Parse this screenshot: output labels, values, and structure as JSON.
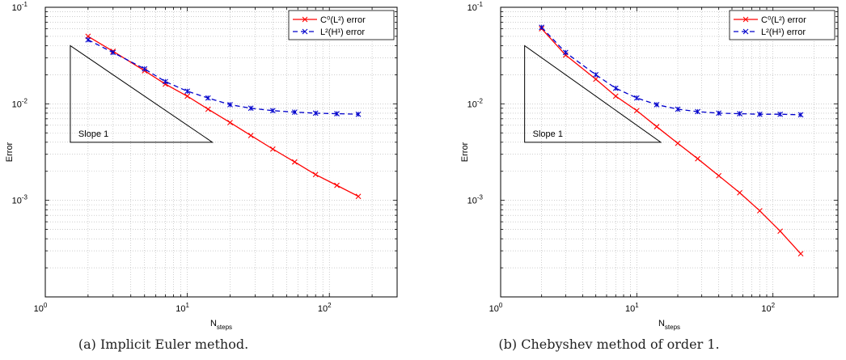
{
  "chart_data": [
    {
      "type": "line",
      "caption": "(a) Implicit Euler method.",
      "xlabel": "N",
      "xlabel_sub": "steps",
      "ylabel": "Error",
      "xscale": "log",
      "yscale": "log",
      "xlim": [
        1,
        300
      ],
      "ylim": [
        0.0001,
        0.1
      ],
      "grid": true,
      "legend_position": "top-right",
      "x_ticks": [
        {
          "base": "10",
          "exp": "0",
          "value": 1
        },
        {
          "base": "10",
          "exp": "1",
          "value": 10
        },
        {
          "base": "10",
          "exp": "2",
          "value": 100
        }
      ],
      "y_ticks": [
        {
          "base": "10",
          "exp": "-3",
          "value": 0.001
        },
        {
          "base": "10",
          "exp": "-2",
          "value": 0.01
        },
        {
          "base": "10",
          "exp": "-1",
          "value": 0.1
        }
      ],
      "annotation": {
        "text": "Slope 1",
        "triangle": [
          [
            1.5,
            0.04
          ],
          [
            1.5,
            0.004
          ],
          [
            15,
            0.004
          ]
        ]
      },
      "series": [
        {
          "legend": "C⁰(L²) error",
          "color": "#ff0000",
          "style": "solid",
          "x": [
            2,
            3,
            5,
            7,
            10,
            14,
            20,
            28,
            40,
            57,
            80,
            113,
            160
          ],
          "y": [
            0.05,
            0.035,
            0.022,
            0.016,
            0.012,
            0.0088,
            0.0064,
            0.0047,
            0.0034,
            0.0025,
            0.00185,
            0.00143,
            0.0011
          ]
        },
        {
          "legend": "L²(H¹) error",
          "color": "#0000cc",
          "style": "dashed",
          "x": [
            2,
            3,
            5,
            7,
            10,
            14,
            20,
            28,
            40,
            57,
            80,
            113,
            160
          ],
          "y": [
            0.046,
            0.034,
            0.023,
            0.017,
            0.0135,
            0.0115,
            0.0098,
            0.009,
            0.0085,
            0.0082,
            0.008,
            0.0079,
            0.0078
          ]
        }
      ]
    },
    {
      "type": "line",
      "caption": "(b) Chebyshev method of order 1.",
      "xlabel": "N",
      "xlabel_sub": "steps",
      "ylabel": "Error",
      "xscale": "log",
      "yscale": "log",
      "xlim": [
        1,
        300
      ],
      "ylim": [
        0.0001,
        0.1
      ],
      "grid": true,
      "legend_position": "top-right",
      "x_ticks": [
        {
          "base": "10",
          "exp": "0",
          "value": 1
        },
        {
          "base": "10",
          "exp": "1",
          "value": 10
        },
        {
          "base": "10",
          "exp": "2",
          "value": 100
        }
      ],
      "y_ticks": [
        {
          "base": "10",
          "exp": "-3",
          "value": 0.001
        },
        {
          "base": "10",
          "exp": "-2",
          "value": 0.01
        },
        {
          "base": "10",
          "exp": "-1",
          "value": 0.1
        }
      ],
      "annotation": {
        "text": "Slope 1",
        "triangle": [
          [
            1.5,
            0.04
          ],
          [
            1.5,
            0.004
          ],
          [
            15,
            0.004
          ]
        ]
      },
      "series": [
        {
          "legend": "C⁰(L²) error",
          "color": "#ff0000",
          "style": "solid",
          "x": [
            2,
            3,
            5,
            7,
            10,
            14,
            20,
            28,
            40,
            57,
            80,
            113,
            160
          ],
          "y": [
            0.06,
            0.032,
            0.018,
            0.012,
            0.0085,
            0.0058,
            0.0039,
            0.0027,
            0.0018,
            0.0012,
            0.00078,
            0.00048,
            0.00028
          ]
        },
        {
          "legend": "L²(H¹) error",
          "color": "#0000cc",
          "style": "dashed",
          "x": [
            2,
            3,
            5,
            7,
            10,
            14,
            20,
            28,
            40,
            57,
            80,
            113,
            160
          ],
          "y": [
            0.062,
            0.034,
            0.02,
            0.0145,
            0.0115,
            0.0098,
            0.0088,
            0.0083,
            0.008,
            0.0079,
            0.0078,
            0.0078,
            0.0077
          ]
        }
      ]
    }
  ]
}
